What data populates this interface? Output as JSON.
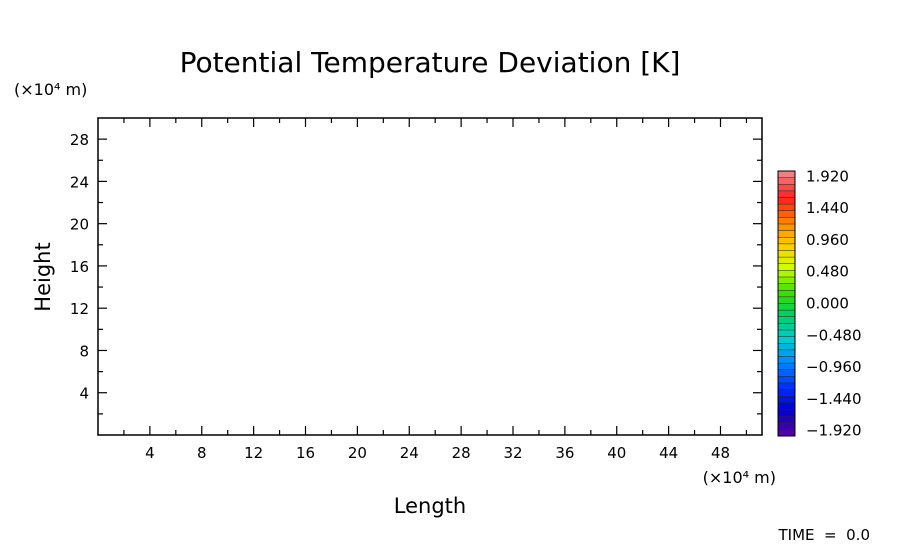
{
  "chart_data": {
    "type": "heatmap",
    "title": "Potential Temperature Deviation [K]",
    "xlabel": "Length",
    "ylabel": "Height",
    "x_unit": "(×10⁴ m)",
    "y_unit": "(×10⁴ m)",
    "xlim": [
      0,
      51.2
    ],
    "ylim": [
      0,
      30
    ],
    "x_ticks": [
      4,
      8,
      12,
      16,
      20,
      24,
      28,
      32,
      36,
      40,
      44,
      48
    ],
    "y_ticks": [
      4,
      8,
      12,
      16,
      20,
      24,
      28
    ],
    "field": "uniform (no visible deviation)",
    "colorbar": {
      "range": [
        -2.0,
        2.0
      ],
      "labels": [
        "1.920",
        "1.440",
        "0.960",
        "0.480",
        "0.000",
        "-0.480",
        "-0.960",
        "-1.440",
        "-1.920"
      ],
      "colors": [
        "#f08080",
        "#ff2020",
        "#ff8000",
        "#ffcc00",
        "#ccff00",
        "#40dd00",
        "#00cc66",
        "#00cccc",
        "#0088ff",
        "#0033ff",
        "#0000cc",
        "#5000a0"
      ]
    },
    "footer": "TIME  =  0.0"
  }
}
